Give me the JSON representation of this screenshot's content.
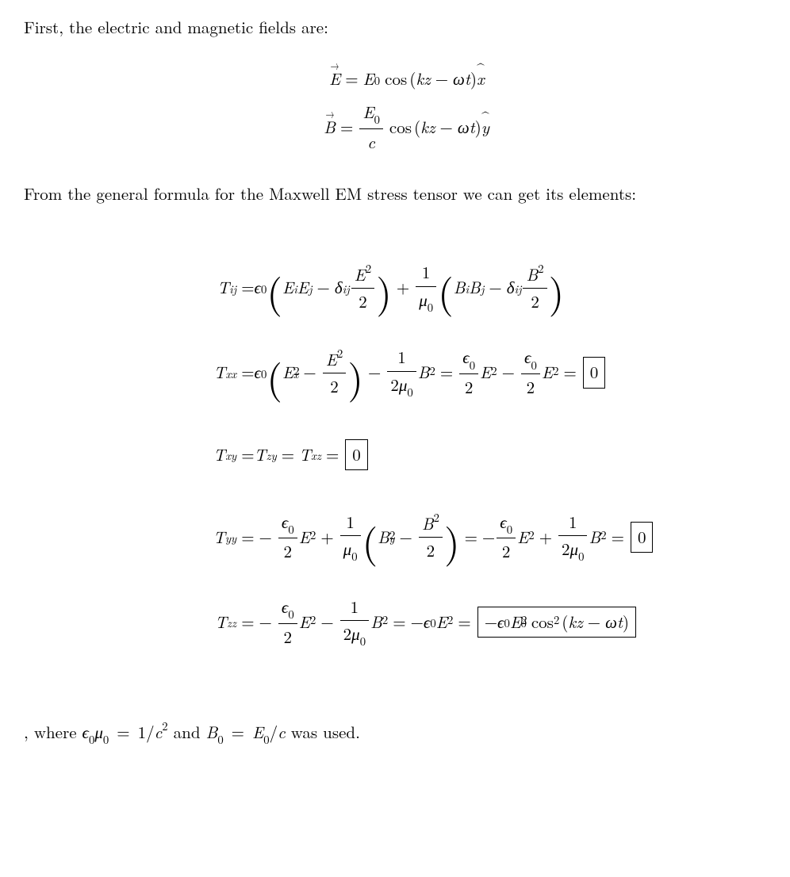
{
  "intro_text": "First, the electric and magnetic fields are:",
  "fields": {
    "E_lhs": "E",
    "E_rhs_coeff": "E",
    "E_rhs_sub": "0",
    "B_lhs": "B",
    "B_rhs_num": "E",
    "B_rhs_num_sub": "0",
    "B_rhs_den": "c",
    "cos_label": "cos",
    "arg_k": "k",
    "arg_z": "z",
    "arg_omega": "ω",
    "arg_t": "t",
    "xhat": "x",
    "yhat": "y"
  },
  "tensor_intro": "From the general formula for the Maxwell EM stress tensor we can get its elements:",
  "symbols": {
    "T": "T",
    "ij": "ij",
    "epsilon": "ϵ",
    "zero": "0",
    "E": "E",
    "B": "B",
    "i": "i",
    "j": "j",
    "delta": "δ",
    "two": "2",
    "one": "1",
    "mu": "μ",
    "x": "x",
    "y": "y",
    "z": "z",
    "xx": "xx",
    "xy": "xy",
    "zy": "zy",
    "xz": "xz",
    "yy": "yy",
    "zz": "zz",
    "minus": "−",
    "plus": "+",
    "equals": "=",
    "sq": "2",
    "cos": "cos",
    "k": "k",
    "omega": "ω",
    "t": "t",
    "c": "c"
  },
  "boxed_values": {
    "zero": "0",
    "tzz": "−ϵ₀E₀² cos²(kz − ωt)"
  },
  "final_note_prefix": ", where ",
  "final_note_mid": " and ",
  "final_note_suffix": " was used.",
  "colors": {
    "text": "#000000",
    "background": "#ffffff",
    "border": "#000000"
  }
}
